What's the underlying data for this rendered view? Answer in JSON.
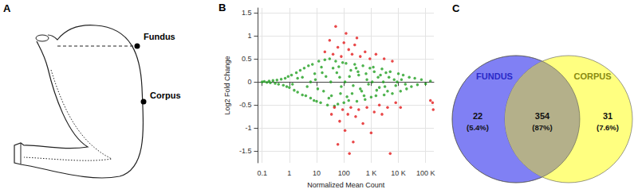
{
  "panel_a": {
    "letter": "A",
    "labels": [
      "Fundus",
      "Corpus"
    ]
  },
  "chart_data": {
    "panel": "B",
    "type": "scatter",
    "x_label": "Normalized Mean Count",
    "y_label": "Log2 Fold Change",
    "log": "x",
    "grid": true,
    "marker": "circle",
    "xlim": [
      0.07,
      200000
    ],
    "xticks": [
      0.1,
      1,
      10,
      100,
      {
        "value": 1000,
        "label": "1 K"
      },
      {
        "value": 10000,
        "label": "10 K"
      },
      {
        "value": 100000,
        "label": "100 K"
      }
    ],
    "ylim": [
      -1.75,
      1.6
    ],
    "yticks": [
      -1.5,
      -1,
      -0.5,
      0,
      0.5,
      1,
      1.5
    ],
    "series": [
      {
        "color": "#22a022",
        "x": [
          0.1,
          0.12,
          0.15,
          0.18,
          0.2,
          0.25,
          0.3,
          0.35,
          0.4,
          0.5,
          0.6,
          0.7,
          0.8,
          0.9,
          1,
          1.2,
          1.5,
          1.8,
          2,
          2.5,
          3,
          3.5,
          4,
          5,
          6,
          7,
          8,
          9,
          10,
          12,
          14,
          16,
          18,
          20,
          25,
          30,
          35,
          40,
          45,
          50,
          60,
          70,
          80,
          90,
          100,
          120,
          150,
          180,
          200,
          250,
          300,
          350,
          400,
          500,
          600,
          700,
          800,
          900,
          1000,
          1200,
          1500,
          1800,
          2000,
          2500,
          3000,
          3500,
          4000,
          5000,
          6000,
          7000,
          8000,
          10000,
          12000,
          15000,
          20000,
          25000,
          30000,
          40000,
          50000,
          70000,
          100000,
          150000,
          3,
          6,
          11,
          22,
          33,
          55,
          75,
          110,
          160,
          220,
          330,
          450,
          650,
          1100,
          1600,
          2200,
          2800,
          4500,
          9000,
          13000,
          18000,
          2,
          1.3,
          4.5,
          8.5,
          15,
          28,
          65,
          130,
          280,
          550,
          1300,
          3200
        ],
        "values": [
          0,
          0.01,
          -0.01,
          0.02,
          -0.02,
          0.03,
          -0.03,
          0.04,
          -0.05,
          0.06,
          -0.07,
          0.08,
          -0.1,
          0.12,
          -0.12,
          0.15,
          -0.18,
          0.2,
          -0.22,
          0.25,
          -0.28,
          0.3,
          -0.3,
          0.35,
          -0.35,
          0.38,
          -0.4,
          0.05,
          -0.42,
          0.45,
          -0.45,
          0.2,
          -0.2,
          0.48,
          -0.5,
          0.5,
          -0.3,
          0.3,
          -0.52,
          0.45,
          -0.48,
          0.1,
          -0.1,
          0.42,
          -0.45,
          0.4,
          -0.4,
          0.25,
          -0.25,
          0.38,
          -0.42,
          0.15,
          -0.15,
          0.35,
          -0.38,
          0.05,
          -0.05,
          0.3,
          -0.33,
          0.32,
          -0.3,
          0.1,
          -0.12,
          0.28,
          -0.28,
          0.2,
          -0.2,
          0.22,
          -0.25,
          0.05,
          -0.08,
          0.18,
          -0.2,
          0.15,
          -0.15,
          0.1,
          -0.1,
          0.08,
          -0.06,
          0.05,
          -0.04,
          0.02,
          0.1,
          0,
          -0.15,
          0.12,
          0,
          0.2,
          -0.25,
          0,
          0.12,
          -0.08,
          0.22,
          -0.2,
          0.18,
          0,
          -0.18,
          0.15,
          0,
          0.1,
          0,
          0.05,
          -0.05,
          0.08,
          -0.05,
          -0.1,
          0.18,
          0.32,
          -0.35,
          0.33,
          -0.32,
          0.3,
          -0.3,
          0.22,
          -0.1
        ]
      },
      {
        "color": "#e41a1c",
        "x": [
          20,
          30,
          40,
          50,
          60,
          80,
          100,
          150,
          200,
          300,
          400,
          600,
          900,
          1500,
          3000,
          6000,
          120,
          250,
          35,
          45,
          70,
          90,
          110,
          140,
          180,
          220,
          270,
          350,
          500,
          700,
          1000,
          1300,
          2000,
          2500,
          4000,
          8000,
          12000,
          160,
          60,
          5000,
          180000,
          190000,
          150000
        ],
        "values": [
          0.65,
          0.9,
          0.6,
          1.2,
          0.75,
          0.55,
          0.85,
          0.7,
          0.6,
          0.95,
          0.55,
          0.65,
          0.5,
          0.6,
          0.5,
          0.45,
          1.05,
          0.8,
          -0.7,
          -0.55,
          -0.85,
          -0.6,
          -1.05,
          -0.7,
          -0.55,
          -1.3,
          -0.75,
          -0.6,
          -0.9,
          -0.55,
          -1.1,
          -0.65,
          -0.5,
          -0.7,
          -0.55,
          -0.45,
          -0.55,
          -1.55,
          -1.35,
          -1.55,
          -0.45,
          -0.6,
          -0.4
        ]
      }
    ]
  },
  "panel_c": {
    "letter": "C",
    "sets": [
      {
        "name": "FUNDUS",
        "color": "#8080f4"
      },
      {
        "name": "CORPUS",
        "color": "#ffff80"
      }
    ],
    "regions": [
      {
        "count": 22,
        "label": "(5.4%)"
      },
      {
        "count": 354,
        "label": "(87%)"
      },
      {
        "count": 31,
        "label": "(7.6%)"
      }
    ]
  }
}
